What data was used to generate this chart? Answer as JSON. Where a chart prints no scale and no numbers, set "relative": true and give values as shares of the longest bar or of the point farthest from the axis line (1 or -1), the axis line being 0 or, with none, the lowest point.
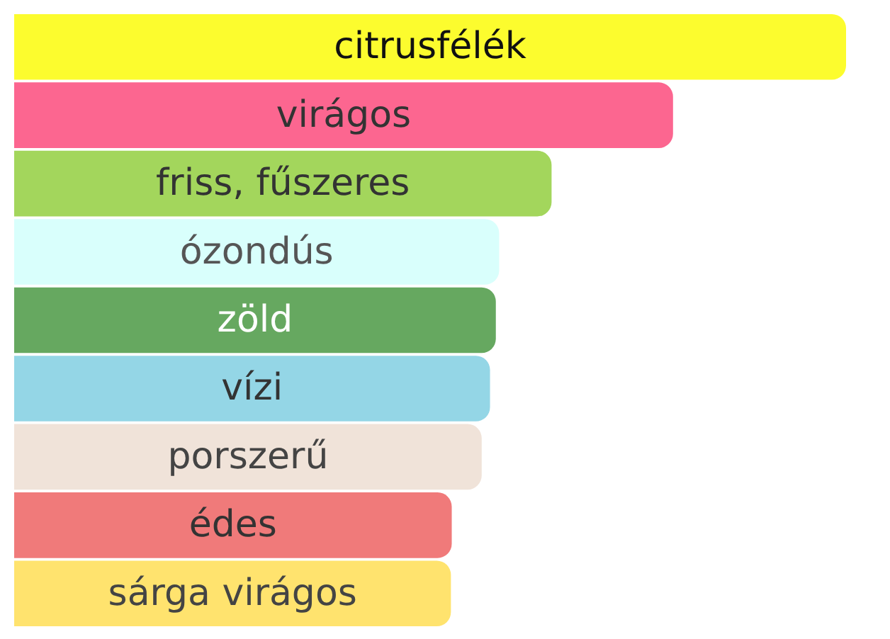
{
  "chart_data": {
    "type": "bar",
    "orientation": "horizontal",
    "relative": true,
    "categories": [
      "citrusfélék",
      "virágos",
      "friss, fűszeres",
      "ózondús",
      "zöld",
      "vízi",
      "porszerű",
      "édes",
      "sárga virágos"
    ],
    "values": [
      1,
      0.792,
      0.646,
      0.583,
      0.579,
      0.572,
      0.562,
      0.526,
      0.525
    ],
    "colors": [
      "#fcfc2e",
      "#fc6690",
      "#a3d65c",
      "#d9fffc",
      "#66a860",
      "#94d6e6",
      "#f0e3d9",
      "#f07a7a",
      "#ffe36e"
    ]
  }
}
